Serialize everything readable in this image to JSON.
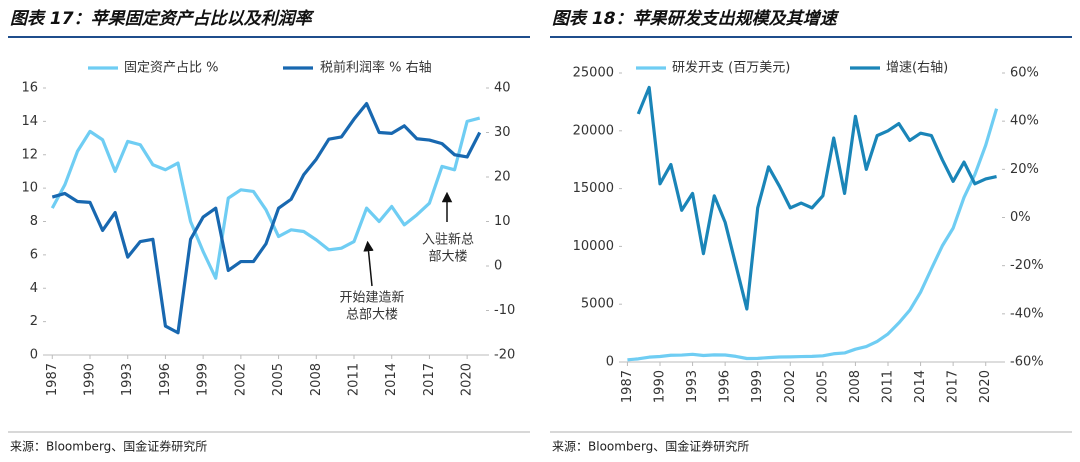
{
  "chart_data": [
    {
      "type": "line",
      "title": "图表 17：苹果固定资产占比以及利润率",
      "source": "来源：Bloomberg、国金证券研究所",
      "x": [
        1987,
        1988,
        1989,
        1990,
        1991,
        1992,
        1993,
        1994,
        1995,
        1996,
        1997,
        1998,
        1999,
        2000,
        2001,
        2002,
        2003,
        2004,
        2005,
        2006,
        2007,
        2008,
        2009,
        2010,
        2011,
        2012,
        2013,
        2014,
        2015,
        2016,
        2017,
        2018,
        2019,
        2020,
        2021
      ],
      "xlim": [
        1986.5,
        2021.5
      ],
      "xticks": [
        1987,
        1990,
        1993,
        1996,
        1999,
        2002,
        2005,
        2008,
        2011,
        2014,
        2017,
        2020
      ],
      "ylim": [
        0,
        16
      ],
      "yticks": [
        0,
        2,
        4,
        6,
        8,
        10,
        12,
        14,
        16
      ],
      "y2lim": [
        -20,
        40
      ],
      "y2ticks": [
        -20,
        -10,
        0,
        10,
        20,
        30,
        40
      ],
      "series": [
        {
          "name": "固定资产占比 %",
          "color": "#6fcdf3",
          "values": [
            8.8,
            10.2,
            12.2,
            13.4,
            12.9,
            11.0,
            12.8,
            12.6,
            11.4,
            11.1,
            11.5,
            8.0,
            6.2,
            4.6,
            9.4,
            9.9,
            9.8,
            8.7,
            7.1,
            7.5,
            7.4,
            6.9,
            6.3,
            6.4,
            6.8,
            8.8,
            8.0,
            8.9,
            7.8,
            8.4,
            9.1,
            11.3,
            11.1,
            14.0,
            14.2
          ]
        },
        {
          "name": "税前利润率 % 右轴",
          "color": "#1868b0",
          "axis": "y2",
          "values": [
            15.5,
            16.3,
            14.5,
            14.3,
            8,
            12,
            2,
            5.5,
            6,
            -13.5,
            -15,
            6,
            11,
            13,
            -1,
            1,
            1,
            5,
            13,
            15,
            20.5,
            24,
            28.5,
            29,
            33,
            36.5,
            30,
            29.8,
            31.5,
            28.6,
            28.3,
            27.5,
            25,
            24.5,
            30
          ]
        }
      ],
      "annotations": [
        [
          "开始建造新",
          "总部大楼"
        ],
        [
          "入驻新总",
          "部大楼"
        ]
      ]
    },
    {
      "type": "line",
      "title": "图表 18：苹果研发支出规模及其增速",
      "source": "来源：Bloomberg、国金证券研究所",
      "x": [
        1987,
        1988,
        1989,
        1990,
        1991,
        1992,
        1993,
        1994,
        1995,
        1996,
        1997,
        1998,
        1999,
        2000,
        2001,
        2002,
        2003,
        2004,
        2005,
        2006,
        2007,
        2008,
        2009,
        2010,
        2011,
        2012,
        2013,
        2014,
        2015,
        2016,
        2017,
        2018,
        2019,
        2020,
        2021
      ],
      "xlim": [
        1986.5,
        2021.5
      ],
      "xticks": [
        1987,
        1990,
        1993,
        1996,
        1999,
        2002,
        2005,
        2008,
        2011,
        2014,
        2017,
        2020
      ],
      "ylim": [
        0,
        25000
      ],
      "yticks": [
        0,
        5000,
        10000,
        15000,
        20000,
        25000
      ],
      "y2lim": [
        -60,
        60
      ],
      "y2ticks": [
        {
          "value": -60,
          "label": "-60%"
        },
        {
          "value": -40,
          "label": "-40%"
        },
        {
          "value": -20,
          "label": "-20%"
        },
        {
          "value": 0,
          "label": "0%"
        },
        {
          "value": 20,
          "label": "20%"
        },
        {
          "value": 40,
          "label": "40%"
        },
        {
          "value": 60,
          "label": "60%"
        }
      ],
      "series": [
        {
          "name": "研发开支 (百万美元)",
          "color": "#6fcdf3",
          "values": [
            191,
            273,
            420,
            478,
            583,
            602,
            665,
            564,
            614,
            604,
            485,
            303,
            314,
            380,
            430,
            446,
            471,
            489,
            535,
            712,
            782,
            1109,
            1333,
            1782,
            2429,
            3381,
            4475,
            6041,
            8067,
            10045,
            11581,
            14236,
            16217,
            18752,
            21914
          ]
        },
        {
          "name": "增速(右轴)",
          "color": "#1a85b8",
          "axis": "y2",
          "values": [
            null,
            43,
            54,
            14,
            22,
            3,
            10,
            -15,
            9,
            -2,
            -20,
            -38,
            4,
            21,
            13,
            4,
            6,
            4,
            9,
            33,
            10,
            42,
            20,
            34,
            36,
            39,
            32,
            35,
            34,
            24,
            15,
            23,
            14,
            16,
            17
          ]
        }
      ]
    }
  ]
}
